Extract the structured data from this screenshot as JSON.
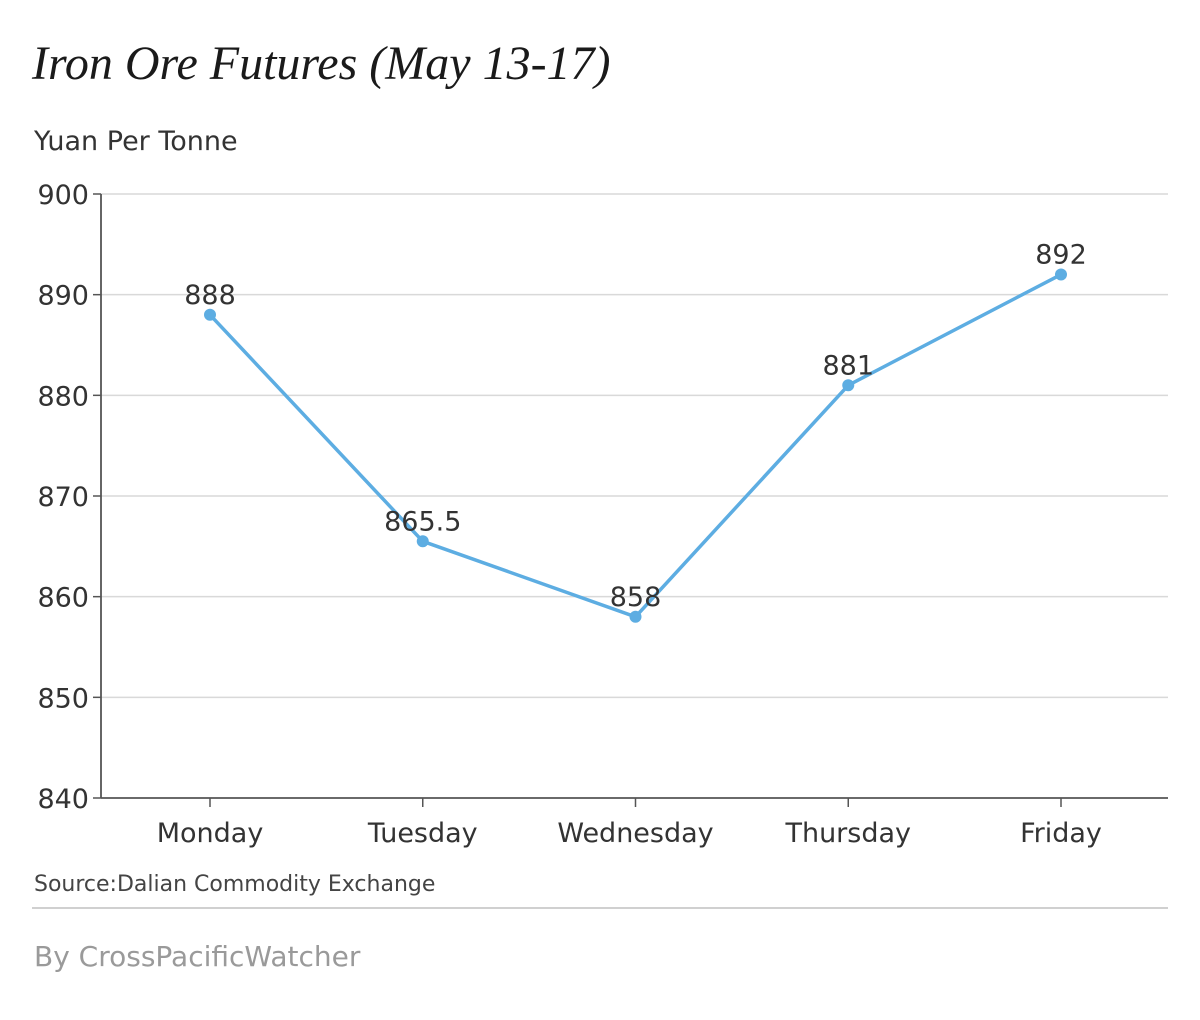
{
  "header": {
    "title": "Iron Ore Futures (May 13-17)",
    "unit_label": "Yuan Per Tonne"
  },
  "footer": {
    "source": "Source:Dalian Commodity Exchange",
    "byline": "By CrossPacificWatcher"
  },
  "colors": {
    "line": "#5dade2",
    "grid": "#d9d9d9",
    "axis": "#555555",
    "text": "#333333"
  },
  "chart_data": {
    "type": "line",
    "title": "Iron Ore Futures (May 13-17)",
    "ylabel": "Yuan Per Tonne",
    "xlabel": "",
    "categories": [
      "Monday",
      "Tuesday",
      "Wednesday",
      "Thursday",
      "Friday"
    ],
    "values": [
      888,
      865.5,
      858,
      881,
      892
    ],
    "data_labels": [
      "888",
      "865.5",
      "858",
      "881",
      "892"
    ],
    "ylim": [
      840,
      900
    ],
    "yticks": [
      840,
      850,
      860,
      870,
      880,
      890,
      900
    ],
    "grid": true,
    "legend": "none"
  }
}
